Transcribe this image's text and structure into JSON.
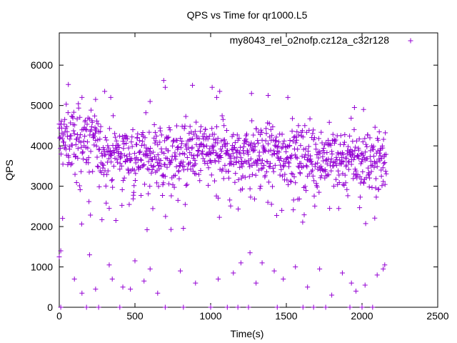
{
  "colors": {
    "series": "#9400d3",
    "axis": "#000000",
    "background": "#ffffff"
  },
  "chart_data": {
    "type": "scatter",
    "title": "QPS vs Time for qr1000.L5",
    "xlabel": "Time(s)",
    "ylabel": "QPS",
    "xlim": [
      0,
      2500
    ],
    "ylim": [
      0,
      6800
    ],
    "xticks": [
      0,
      500,
      1000,
      1500,
      2000,
      2500
    ],
    "yticks": [
      0,
      1000,
      2000,
      3000,
      4000,
      5000,
      6000
    ],
    "grid": false,
    "legend_position": "top-right",
    "series": [
      {
        "name": "my8043_rel_o2nofp.cz12a_c32r128",
        "marker": "+",
        "x_start": 0,
        "x_end": 2160,
        "interval_s": 2,
        "band_center": 3800,
        "band_spread": 700,
        "peak_values": [
          [
            60,
            5520
          ],
          [
            150,
            5200
          ],
          [
            240,
            5150
          ],
          [
            300,
            5350
          ],
          [
            340,
            5200
          ],
          [
            600,
            5100
          ],
          [
            690,
            5620
          ],
          [
            700,
            5450
          ],
          [
            880,
            5500
          ],
          [
            1010,
            5450
          ],
          [
            1040,
            5200
          ],
          [
            1060,
            5350
          ],
          [
            1270,
            5300
          ],
          [
            1380,
            5250
          ],
          [
            1510,
            5200
          ],
          [
            1950,
            4950
          ],
          [
            2010,
            4900
          ]
        ],
        "outliers": [
          [
            0,
            1250
          ],
          [
            10,
            1400
          ],
          [
            100,
            700
          ],
          [
            150,
            350
          ],
          [
            200,
            1300
          ],
          [
            240,
            450
          ],
          [
            330,
            1050
          ],
          [
            350,
            700
          ],
          [
            420,
            500
          ],
          [
            470,
            450
          ],
          [
            500,
            1150
          ],
          [
            560,
            650
          ],
          [
            600,
            950
          ],
          [
            650,
            350
          ],
          [
            800,
            900
          ],
          [
            900,
            600
          ],
          [
            1050,
            700
          ],
          [
            1150,
            850
          ],
          [
            1200,
            1100
          ],
          [
            1260,
            1350
          ],
          [
            1300,
            600
          ],
          [
            1340,
            1100
          ],
          [
            1420,
            900
          ],
          [
            1480,
            700
          ],
          [
            1560,
            1000
          ],
          [
            1640,
            500
          ],
          [
            1720,
            950
          ],
          [
            1800,
            300
          ],
          [
            1870,
            850
          ],
          [
            1930,
            600
          ],
          [
            1960,
            400
          ],
          [
            2020,
            550
          ],
          [
            2100,
            800
          ],
          [
            2140,
            950
          ],
          [
            2150,
            1050
          ]
        ],
        "zero_drops": [
          [
            10,
            0
          ],
          [
            180,
            0
          ],
          [
            260,
            0
          ],
          [
            400,
            0
          ],
          [
            700,
            0
          ],
          [
            820,
            0
          ],
          [
            1000,
            0
          ],
          [
            1110,
            0
          ],
          [
            1180,
            0
          ],
          [
            1250,
            0
          ],
          [
            1440,
            0
          ],
          [
            1610,
            0
          ],
          [
            1680,
            0
          ],
          [
            1760,
            0
          ],
          [
            1920,
            0
          ],
          [
            2000,
            0
          ],
          [
            2070,
            0
          ]
        ]
      }
    ]
  }
}
